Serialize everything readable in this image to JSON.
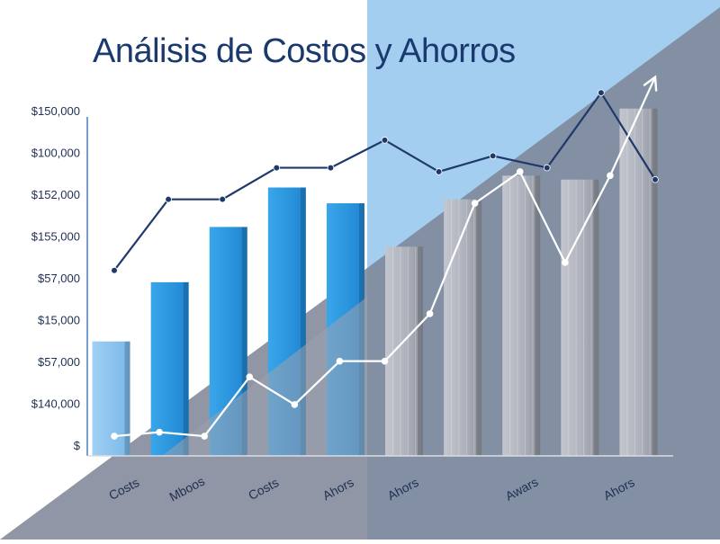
{
  "chart_data": {
    "type": "bar",
    "title": "Análisis de Costos y Ahorros",
    "xlabel": "",
    "ylabel": "",
    "y_tick_labels": [
      "$150,000",
      "$100,000",
      "$152,000",
      "$155,000",
      "$57,000",
      "$15,000",
      "$57,000",
      "$140,000",
      "$"
    ],
    "x_tick_labels": [
      "Costs",
      "Mboos",
      "Costs",
      "Ahors",
      "Ahors",
      "Awars",
      "Ahors"
    ],
    "ylim": [
      0,
      9.5
    ],
    "grid": false,
    "legend": "none",
    "bar_count": 10,
    "series": [
      {
        "type": "bar",
        "values": [
          2.9,
          4.4,
          5.8,
          6.8,
          6.4,
          5.3,
          6.5,
          7.1,
          7.0,
          8.8
        ]
      },
      {
        "type": "line",
        "values": [
          4.7,
          6.5,
          6.5,
          7.3,
          7.3,
          8.0,
          7.2,
          7.6,
          7.3,
          9.2,
          7.0
        ]
      },
      {
        "type": "line",
        "values": [
          0.5,
          0.6,
          0.5,
          2.0,
          1.3,
          2.4,
          2.4,
          3.6,
          6.4,
          7.2,
          4.9,
          7.1,
          9.6
        ]
      }
    ],
    "colors": {
      "bar_blue": "#2f9ae0",
      "bar_light_blue": "#8fc7ee",
      "bar_gray": "#a9adb8",
      "line_dark": "#1f3a6a",
      "line_white": "#ffffff",
      "band_light_blue": "#9fcbef",
      "band_slate": "#7b8393"
    }
  }
}
